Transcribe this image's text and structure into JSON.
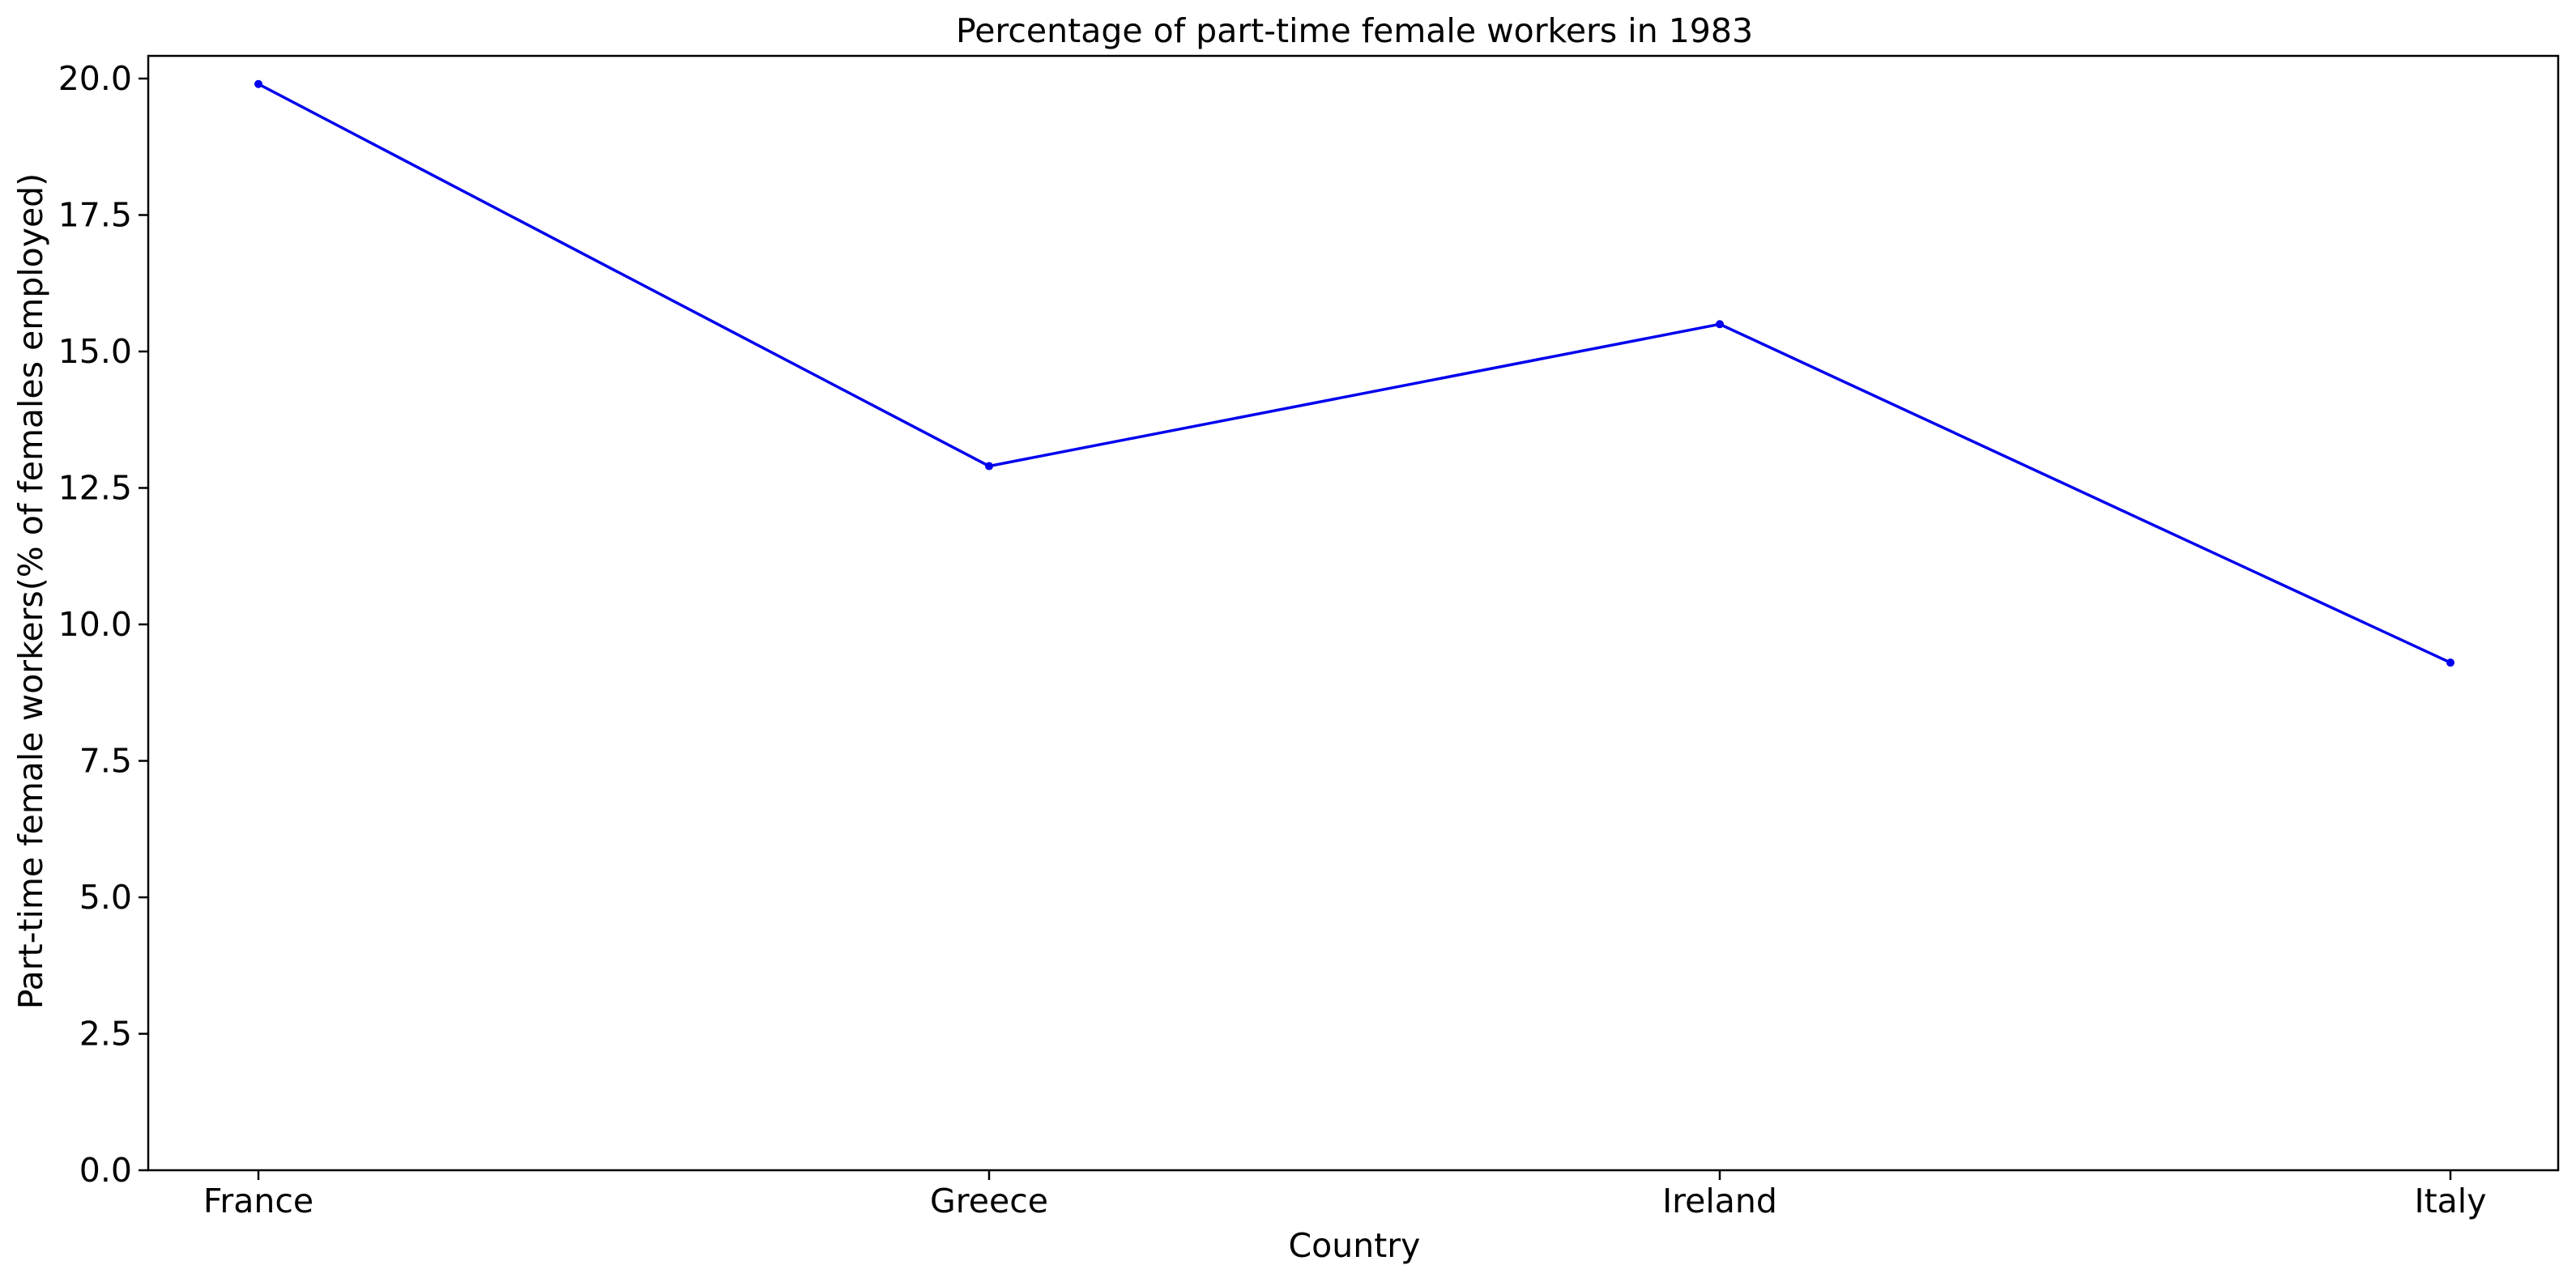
{
  "chart_data": {
    "type": "line",
    "title": "Percentage of part-time female workers in 1983",
    "xlabel": "Country",
    "ylabel": "Part-time female workers(% of females employed)",
    "categories": [
      "France",
      "Greece",
      "Ireland",
      "Italy"
    ],
    "series": [
      {
        "values": [
          19.9,
          12.9,
          15.5,
          9.3
        ],
        "color": "#0000ee"
      }
    ],
    "ylim": [
      0,
      20.5
    ],
    "yticks": [
      0.0,
      2.5,
      5.0,
      7.5,
      10.0,
      12.5,
      15.0,
      17.5,
      20.0
    ],
    "ytick_labels": [
      "0.0",
      "2.5",
      "5.0",
      "7.5",
      "10.0",
      "12.5",
      "15.0",
      "17.5",
      "20.0"
    ],
    "grid": false,
    "legend": "none"
  }
}
